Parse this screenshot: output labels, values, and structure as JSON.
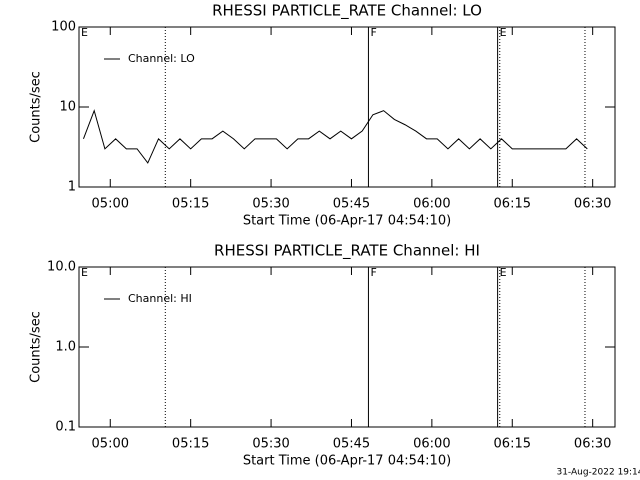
{
  "chart_data": [
    {
      "type": "line",
      "title": "RHESSI PARTICLE_RATE Channel: LO",
      "xlabel": "Start Time (06-Apr-17 04:54:10)",
      "ylabel": "Counts/sec",
      "log_y": true,
      "ylim": [
        1,
        100
      ],
      "yticks": [
        1,
        10,
        100
      ],
      "xlim": [
        "04:54:10",
        "06:34:10"
      ],
      "xticks": [
        "05:00",
        "05:15",
        "05:30",
        "05:45",
        "06:00",
        "06:15",
        "06:30"
      ],
      "legend": "upper left",
      "x": [
        "04:55",
        "04:57",
        "04:59",
        "05:01",
        "05:03",
        "05:05",
        "05:07",
        "05:09",
        "05:11",
        "05:13",
        "05:15",
        "05:17",
        "05:19",
        "05:21",
        "05:23",
        "05:25",
        "05:27",
        "05:29",
        "05:31",
        "05:33",
        "05:35",
        "05:37",
        "05:39",
        "05:41",
        "05:43",
        "05:45",
        "05:47",
        "05:49",
        "05:51",
        "05:53",
        "05:55",
        "05:57",
        "05:59",
        "06:01",
        "06:03",
        "06:05",
        "06:07",
        "06:09",
        "06:11",
        "06:13",
        "06:15",
        "06:17",
        "06:19",
        "06:21",
        "06:23",
        "06:25",
        "06:27",
        "06:29"
      ],
      "series": [
        {
          "name": "Channel: LO",
          "color": "#000000",
          "values": [
            4,
            9,
            3,
            4,
            3,
            3,
            2,
            4,
            3,
            4,
            3,
            4,
            4,
            5,
            4,
            3,
            4,
            4,
            4,
            3,
            4,
            4,
            5,
            4,
            5,
            4,
            5,
            8,
            9,
            7,
            6,
            5,
            4,
            4,
            3,
            4,
            3,
            4,
            3,
            4,
            3,
            3,
            3,
            3,
            3,
            3,
            4,
            3
          ]
        }
      ],
      "markers": [
        {
          "x": "05:10:16",
          "style": "dotted"
        },
        {
          "x": "05:48:10",
          "style": "solid"
        },
        {
          "x": "06:12:16",
          "style": "solid"
        },
        {
          "x": "06:12:40",
          "style": "dotted"
        },
        {
          "x": "06:28:34",
          "style": "dotted"
        }
      ],
      "annotations": [
        {
          "x": "04:54:10",
          "text": "E"
        },
        {
          "x": "05:48:10",
          "text": "F"
        },
        {
          "x": "06:12:16",
          "text": "E"
        }
      ]
    },
    {
      "type": "line",
      "title": "RHESSI PARTICLE_RATE Channel: HI",
      "xlabel": "Start Time (06-Apr-17 04:54:10)",
      "ylabel": "Counts/sec",
      "log_y": true,
      "ylim": [
        0.1,
        10
      ],
      "yticks": [
        0.1,
        {
          "value": 1,
          "label": "1.0"
        },
        {
          "value": 10,
          "label": "10.0"
        }
      ],
      "xlim": [
        "04:54:10",
        "06:34:10"
      ],
      "xticks": [
        "05:00",
        "05:15",
        "05:30",
        "05:45",
        "06:00",
        "06:15",
        "06:30"
      ],
      "legend": "upper left",
      "x": [],
      "series": [
        {
          "name": "Channel: HI",
          "color": "#000000",
          "values": []
        }
      ],
      "markers": [
        {
          "x": "05:10:16",
          "style": "dotted"
        },
        {
          "x": "05:48:10",
          "style": "solid"
        },
        {
          "x": "06:12:16",
          "style": "solid"
        },
        {
          "x": "06:12:40",
          "style": "dotted"
        },
        {
          "x": "06:28:34",
          "style": "dotted"
        }
      ],
      "annotations": [
        {
          "x": "04:54:10",
          "text": "E"
        },
        {
          "x": "05:48:10",
          "text": "F"
        },
        {
          "x": "06:12:16",
          "text": "E"
        }
      ]
    }
  ],
  "footer": "31-Aug-2022 19:14"
}
